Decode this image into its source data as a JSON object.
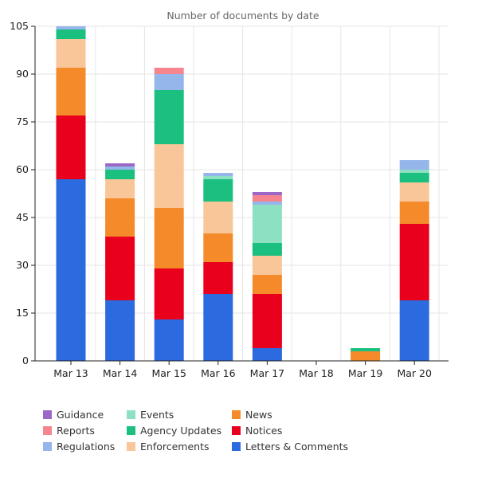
{
  "chart_data": {
    "type": "bar",
    "stacked": true,
    "title": "Number of documents by date",
    "xlabel": "",
    "ylabel": "",
    "categories": [
      "Mar 13",
      "Mar 14",
      "Mar 15",
      "Mar 16",
      "Mar 17",
      "Mar 18",
      "Mar 19",
      "Mar 20"
    ],
    "ylim": [
      0,
      105
    ],
    "yticks": [
      0,
      15,
      30,
      45,
      60,
      75,
      90,
      105
    ],
    "grid": true,
    "legend_position": "bottom",
    "series": [
      {
        "name": "Letters & Comments",
        "color": "#2b6bdf",
        "values": [
          57,
          19,
          13,
          21,
          4,
          0,
          0,
          19
        ]
      },
      {
        "name": "Notices",
        "color": "#e8001c",
        "values": [
          20,
          20,
          16,
          10,
          17,
          0,
          0,
          24
        ]
      },
      {
        "name": "News",
        "color": "#f48a2a",
        "values": [
          15,
          12,
          19,
          9,
          6,
          0,
          3,
          7
        ]
      },
      {
        "name": "Enforcements",
        "color": "#f8c699",
        "values": [
          9,
          6,
          20,
          10,
          6,
          0,
          0,
          6
        ]
      },
      {
        "name": "Agency Updates",
        "color": "#1bbf80",
        "values": [
          3,
          3,
          17,
          7,
          4,
          0,
          1,
          3
        ]
      },
      {
        "name": "Events",
        "color": "#8ee0c2",
        "values": [
          0,
          0,
          0,
          1,
          12,
          0,
          0,
          1
        ]
      },
      {
        "name": "Regulations",
        "color": "#94b6ea",
        "values": [
          1,
          1,
          5,
          1,
          1,
          0,
          0,
          3
        ]
      },
      {
        "name": "Reports",
        "color": "#f7858f",
        "values": [
          0,
          0,
          2,
          0,
          2,
          0,
          0,
          0
        ]
      },
      {
        "name": "Guidance",
        "color": "#9c68c8",
        "values": [
          0,
          1,
          0,
          0,
          1,
          0,
          0,
          0
        ]
      }
    ]
  }
}
